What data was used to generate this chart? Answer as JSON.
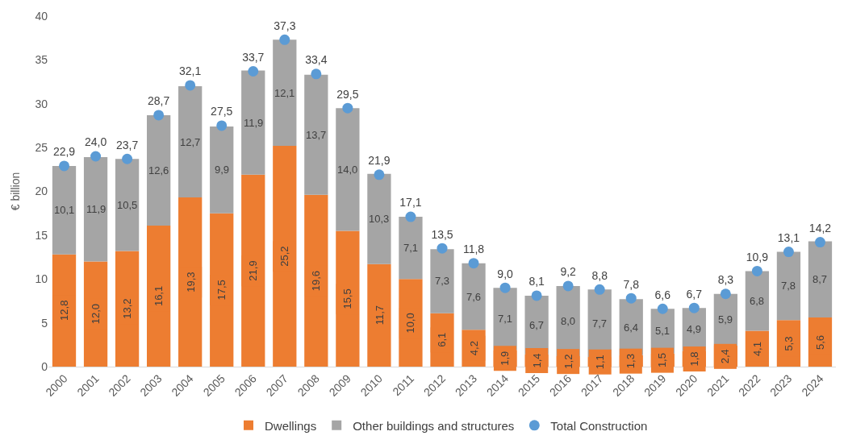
{
  "chart_data": {
    "type": "bar",
    "stacked": true,
    "ylabel": "€ billion",
    "ylim": [
      0,
      40
    ],
    "yticks": [
      0,
      5,
      10,
      15,
      20,
      25,
      30,
      35,
      40
    ],
    "grid": false,
    "legend": "bottom",
    "categories": [
      "2000",
      "2001",
      "2002",
      "2003",
      "2004",
      "2005",
      "2006",
      "2007",
      "2008",
      "2009",
      "2010",
      "2011",
      "2012",
      "2013",
      "2014",
      "2015",
      "2016",
      "2017",
      "2018",
      "2019",
      "2020",
      "2021",
      "2022",
      "2023",
      "2024"
    ],
    "series": [
      {
        "name": "Dwellings",
        "color": "#ed7d31",
        "values": [
          12.8,
          12.0,
          13.2,
          16.1,
          19.3,
          17.5,
          21.9,
          25.2,
          19.6,
          15.5,
          11.7,
          10.0,
          6.1,
          4.2,
          1.9,
          1.4,
          1.2,
          1.1,
          1.3,
          1.5,
          1.8,
          2.4,
          4.1,
          5.3,
          5.6
        ],
        "value_labels": [
          "12,8",
          "12,0",
          "13,2",
          "16,1",
          "19,3",
          "17,5",
          "21,9",
          "25,2",
          "19,6",
          "15,5",
          "11,7",
          "10,0",
          "6,1",
          "4,2",
          "1,9",
          "1,4",
          "1,2",
          "1,1",
          "1,3",
          "1,5",
          "1,8",
          "2,4",
          "4,1",
          "5,3",
          "5,6"
        ]
      },
      {
        "name": "Other buildings and structures",
        "color": "#a5a5a5",
        "values": [
          10.1,
          11.9,
          10.5,
          12.6,
          12.7,
          9.9,
          11.9,
          12.1,
          13.7,
          14.0,
          10.3,
          7.1,
          7.3,
          7.6,
          7.1,
          6.7,
          8.0,
          7.7,
          6.4,
          5.1,
          4.9,
          5.9,
          6.8,
          7.8,
          8.7
        ],
        "value_labels": [
          "10,1",
          "11,9",
          "10,5",
          "12,6",
          "12,7",
          "9,9",
          "11,9",
          "12,1",
          "13,7",
          "14,0",
          "10,3",
          "7,1",
          "7,3",
          "7,6",
          "7,1",
          "6,7",
          "8,0",
          "7,7",
          "6,4",
          "5,1",
          "4,9",
          "5,9",
          "6,8",
          "7,8",
          "8,7"
        ]
      },
      {
        "name": "Total Construction",
        "type": "scatter",
        "marker": "circle",
        "color": "#5b9bd5",
        "values": [
          22.9,
          24.0,
          23.7,
          28.7,
          32.1,
          27.5,
          33.7,
          37.3,
          33.4,
          29.5,
          21.9,
          17.1,
          13.5,
          11.8,
          9.0,
          8.1,
          9.2,
          8.8,
          7.8,
          6.6,
          6.7,
          8.3,
          10.9,
          13.1,
          14.2
        ],
        "value_labels": [
          "22,9",
          "24,0",
          "23,7",
          "28,7",
          "32,1",
          "27,5",
          "33,7",
          "37,3",
          "33,4",
          "29,5",
          "21,9",
          "17,1",
          "13,5",
          "11,8",
          "9,0",
          "8,1",
          "9,2",
          "8,8",
          "7,8",
          "6,6",
          "6,7",
          "8,3",
          "10,9",
          "13,1",
          "14,2"
        ]
      }
    ]
  }
}
